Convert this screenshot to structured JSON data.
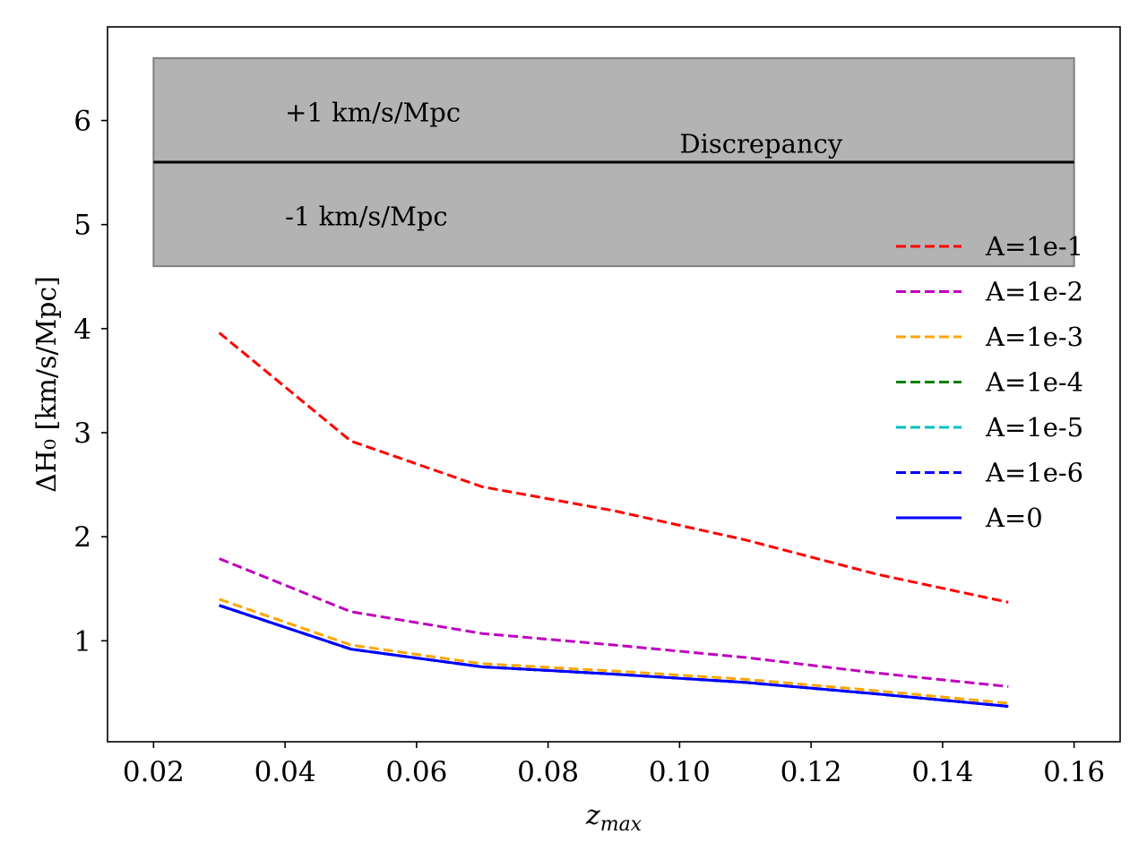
{
  "chart_data": {
    "type": "line",
    "xlabel_main": "z",
    "xlabel_sub": "max",
    "ylabel": "ΔH₀ [km/s/Mpc]",
    "xlim": [
      0.013,
      0.167
    ],
    "ylim": [
      0.03,
      6.9
    ],
    "xticks": [
      0.02,
      0.04,
      0.06,
      0.08,
      0.1,
      0.12,
      0.14,
      0.16
    ],
    "xtick_labels": [
      "0.02",
      "0.04",
      "0.06",
      "0.08",
      "0.10",
      "0.12",
      "0.14",
      "0.16"
    ],
    "yticks": [
      1,
      2,
      3,
      4,
      5,
      6
    ],
    "ytick_labels": [
      "1",
      "2",
      "3",
      "4",
      "5",
      "6"
    ],
    "band": {
      "x_range": [
        0.02,
        0.16
      ],
      "y_range": [
        4.6,
        6.6
      ],
      "color": "#b3b3b3",
      "edge_color": "#808080",
      "center": 5.6,
      "label": "Discrepancy",
      "upper_label": "+1 km/s/Mpc",
      "lower_label": "-1 km/s/Mpc"
    },
    "x": [
      0.03,
      0.05,
      0.07,
      0.09,
      0.11,
      0.13,
      0.15
    ],
    "series": [
      {
        "name": "A=1e-1",
        "color": "#ff0000",
        "style": "dashed",
        "values": [
          3.96,
          2.92,
          2.48,
          2.25,
          1.97,
          1.64,
          1.37
        ]
      },
      {
        "name": "A=1e-2",
        "color": "#bf00bf",
        "style": "dashed",
        "values": [
          1.79,
          1.28,
          1.07,
          0.96,
          0.84,
          0.69,
          0.56
        ]
      },
      {
        "name": "A=1e-3",
        "color": "#ffa500",
        "style": "dashed",
        "values": [
          1.4,
          0.96,
          0.78,
          0.71,
          0.63,
          0.52,
          0.4
        ]
      },
      {
        "name": "A=1e-4",
        "color": "#008000",
        "style": "dashed",
        "values": [
          1.34,
          0.92,
          0.75,
          0.68,
          0.6,
          0.49,
          0.37
        ]
      },
      {
        "name": "A=1e-5",
        "color": "#00bfbf",
        "style": "dashed",
        "values": [
          1.34,
          0.92,
          0.75,
          0.68,
          0.6,
          0.49,
          0.37
        ]
      },
      {
        "name": "A=1e-6",
        "color": "#0000ff",
        "style": "dashed",
        "values": [
          1.34,
          0.92,
          0.75,
          0.68,
          0.6,
          0.49,
          0.37
        ]
      },
      {
        "name": "A=0",
        "color": "#0000ff",
        "style": "solid",
        "values": [
          1.34,
          0.92,
          0.75,
          0.68,
          0.6,
          0.49,
          0.37
        ]
      }
    ],
    "legend_position": "right"
  }
}
